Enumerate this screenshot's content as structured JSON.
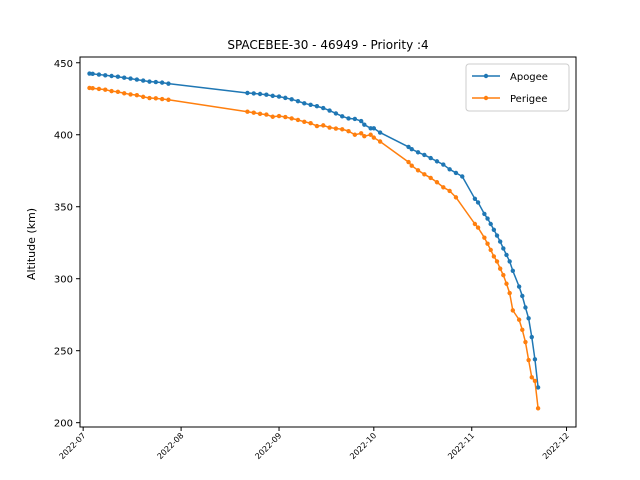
{
  "chart_data": {
    "type": "line",
    "title": "SPACEBEE-30 - 46949 - Priority :4",
    "xlabel": "",
    "ylabel": "Altitude (km)",
    "x_ticks": [
      "2022-07-01",
      "2022-08-01",
      "2022-09-01",
      "2022-10-01",
      "2022-11-01",
      "2022-12-01"
    ],
    "x_tick_labels": [
      "2022-07",
      "2022-08",
      "2022-09",
      "2022-10",
      "2022-11",
      "2022-12"
    ],
    "xlim": [
      "2022-06-30",
      "2022-12-04"
    ],
    "ylim": [
      197,
      454
    ],
    "y_ticks": [
      200,
      250,
      300,
      350,
      400,
      450
    ],
    "legend_position": "top-right",
    "grid": false,
    "series": [
      {
        "name": "Apogee",
        "color": "#1f77b4",
        "points": [
          [
            "2022-07-03",
            442.5
          ],
          [
            "2022-07-04",
            442.3
          ],
          [
            "2022-07-06",
            441.8
          ],
          [
            "2022-07-08",
            441.3
          ],
          [
            "2022-07-10",
            440.8
          ],
          [
            "2022-07-12",
            440.3
          ],
          [
            "2022-07-14",
            439.6
          ],
          [
            "2022-07-16",
            439.0
          ],
          [
            "2022-07-18",
            438.3
          ],
          [
            "2022-07-20",
            437.6
          ],
          [
            "2022-07-22",
            436.9
          ],
          [
            "2022-07-24",
            436.6
          ],
          [
            "2022-07-26",
            436.2
          ],
          [
            "2022-07-28",
            435.5
          ],
          [
            "2022-08-22",
            429.0
          ],
          [
            "2022-08-24",
            428.7
          ],
          [
            "2022-08-26",
            428.3
          ],
          [
            "2022-08-28",
            427.8
          ],
          [
            "2022-08-30",
            427.0
          ],
          [
            "2022-09-01",
            426.5
          ],
          [
            "2022-09-03",
            425.6
          ],
          [
            "2022-09-05",
            424.6
          ],
          [
            "2022-09-07",
            423.3
          ],
          [
            "2022-09-09",
            421.8
          ],
          [
            "2022-09-11",
            420.8
          ],
          [
            "2022-09-13",
            419.8
          ],
          [
            "2022-09-15",
            418.5
          ],
          [
            "2022-09-17",
            416.8
          ],
          [
            "2022-09-19",
            414.8
          ],
          [
            "2022-09-21",
            412.8
          ],
          [
            "2022-09-23",
            411.3
          ],
          [
            "2022-09-25",
            411.0
          ],
          [
            "2022-09-27",
            409.5
          ],
          [
            "2022-09-28",
            407.0
          ],
          [
            "2022-09-30",
            404.5
          ],
          [
            "2022-10-01",
            404.5
          ],
          [
            "2022-10-03",
            401.5
          ],
          [
            "2022-10-12",
            391.5
          ],
          [
            "2022-10-13",
            390.0
          ],
          [
            "2022-10-15",
            387.8
          ],
          [
            "2022-10-17",
            386.0
          ],
          [
            "2022-10-19",
            383.8
          ],
          [
            "2022-10-21",
            381.5
          ],
          [
            "2022-10-23",
            379.3
          ],
          [
            "2022-10-25",
            376.0
          ],
          [
            "2022-10-27",
            373.5
          ],
          [
            "2022-10-29",
            371.0
          ],
          [
            "2022-11-02",
            355.5
          ],
          [
            "2022-11-03",
            353.0
          ],
          [
            "2022-11-05",
            345.0
          ],
          [
            "2022-11-06",
            341.8
          ],
          [
            "2022-11-07",
            338.0
          ],
          [
            "2022-11-08",
            334.0
          ],
          [
            "2022-11-09",
            330.0
          ],
          [
            "2022-11-10",
            325.8
          ],
          [
            "2022-11-11",
            321.0
          ],
          [
            "2022-11-12",
            316.5
          ],
          [
            "2022-11-13",
            312.0
          ],
          [
            "2022-11-14",
            305.5
          ],
          [
            "2022-11-16",
            294.5
          ],
          [
            "2022-11-17",
            288.0
          ],
          [
            "2022-11-18",
            280.0
          ],
          [
            "2022-11-19",
            272.5
          ],
          [
            "2022-11-20",
            259.5
          ],
          [
            "2022-11-21",
            244.0
          ],
          [
            "2022-11-22",
            224.5
          ]
        ]
      },
      {
        "name": "Perigee",
        "color": "#ff7f0e",
        "points": [
          [
            "2022-07-03",
            432.5
          ],
          [
            "2022-07-04",
            432.3
          ],
          [
            "2022-07-06",
            431.8
          ],
          [
            "2022-07-08",
            431.3
          ],
          [
            "2022-07-10",
            430.3
          ],
          [
            "2022-07-12",
            429.8
          ],
          [
            "2022-07-14",
            428.8
          ],
          [
            "2022-07-16",
            428.0
          ],
          [
            "2022-07-18",
            427.5
          ],
          [
            "2022-07-20",
            426.3
          ],
          [
            "2022-07-22",
            425.5
          ],
          [
            "2022-07-24",
            425.3
          ],
          [
            "2022-07-26",
            424.8
          ],
          [
            "2022-07-28",
            424.3
          ],
          [
            "2022-08-22",
            416.0
          ],
          [
            "2022-08-24",
            415.3
          ],
          [
            "2022-08-26",
            414.5
          ],
          [
            "2022-08-28",
            414.0
          ],
          [
            "2022-08-30",
            412.5
          ],
          [
            "2022-09-01",
            413.0
          ],
          [
            "2022-09-03",
            412.3
          ],
          [
            "2022-09-05",
            411.3
          ],
          [
            "2022-09-07",
            410.3
          ],
          [
            "2022-09-09",
            409.0
          ],
          [
            "2022-09-11",
            408.0
          ],
          [
            "2022-09-13",
            406.0
          ],
          [
            "2022-09-15",
            406.5
          ],
          [
            "2022-09-17",
            405.0
          ],
          [
            "2022-09-19",
            404.3
          ],
          [
            "2022-09-21",
            403.8
          ],
          [
            "2022-09-23",
            402.5
          ],
          [
            "2022-09-25",
            400.0
          ],
          [
            "2022-09-27",
            401.0
          ],
          [
            "2022-09-28",
            399.0
          ],
          [
            "2022-09-30",
            400.0
          ],
          [
            "2022-10-01",
            398.0
          ],
          [
            "2022-10-03",
            395.3
          ],
          [
            "2022-10-12",
            381.0
          ],
          [
            "2022-10-13",
            378.5
          ],
          [
            "2022-10-15",
            375.3
          ],
          [
            "2022-10-17",
            372.5
          ],
          [
            "2022-10-19",
            370.0
          ],
          [
            "2022-10-21",
            367.0
          ],
          [
            "2022-10-23",
            363.5
          ],
          [
            "2022-10-25",
            361.0
          ],
          [
            "2022-10-27",
            356.5
          ],
          [
            "2022-11-02",
            338.0
          ],
          [
            "2022-11-03",
            335.5
          ],
          [
            "2022-11-05",
            328.5
          ],
          [
            "2022-11-06",
            324.3
          ],
          [
            "2022-11-07",
            320.0
          ],
          [
            "2022-11-08",
            315.5
          ],
          [
            "2022-11-09",
            312.0
          ],
          [
            "2022-11-10",
            307.0
          ],
          [
            "2022-11-11",
            302.5
          ],
          [
            "2022-11-12",
            296.5
          ],
          [
            "2022-11-13",
            290.0
          ],
          [
            "2022-11-14",
            278.0
          ],
          [
            "2022-11-16",
            271.5
          ],
          [
            "2022-11-17",
            264.5
          ],
          [
            "2022-11-18",
            256.0
          ],
          [
            "2022-11-19",
            243.5
          ],
          [
            "2022-11-20",
            231.5
          ],
          [
            "2022-11-21",
            229.0
          ],
          [
            "2022-11-22",
            210.0
          ]
        ]
      }
    ]
  }
}
